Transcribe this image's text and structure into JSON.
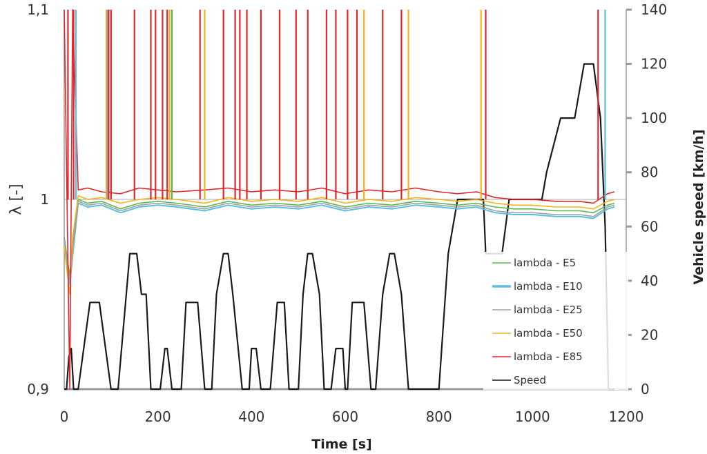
{
  "chart_data": {
    "type": "line",
    "title": "",
    "xlabel": "Time [s]",
    "ylabel_left": "λ [-]",
    "ylabel_right": "Vehicle speed [km/h]",
    "xlim": [
      0,
      1200
    ],
    "ylim_left": [
      0.9,
      1.1
    ],
    "ylim_right": [
      0,
      140
    ],
    "x_ticks": [
      "0",
      "200",
      "400",
      "600",
      "800",
      "1000",
      "1200"
    ],
    "y_left_ticks": [
      "0,9",
      "1",
      "1,1"
    ],
    "y_right_ticks": [
      "0",
      "20",
      "40",
      "60",
      "80",
      "100",
      "120",
      "140"
    ],
    "grid": "horizontal at λ = 1",
    "legend_position": "right-center",
    "legend": [
      "lambda - E5",
      "lambda - E10",
      "lambda - E25",
      "lambda - E50",
      "lambda - E85",
      "Speed"
    ],
    "series": [
      {
        "name": "Speed",
        "axis": "right",
        "color": "#1a1a1a",
        "x": [
          0,
          5,
          10,
          15,
          20,
          25,
          30,
          55,
          75,
          100,
          115,
          140,
          155,
          165,
          175,
          185,
          195,
          205,
          215,
          220,
          230,
          250,
          260,
          285,
          300,
          315,
          325,
          340,
          350,
          360,
          380,
          395,
          400,
          410,
          420,
          440,
          455,
          470,
          480,
          500,
          510,
          520,
          530,
          545,
          555,
          570,
          580,
          595,
          600,
          605,
          615,
          640,
          655,
          665,
          680,
          695,
          705,
          720,
          735,
          745,
          765,
          780,
          795,
          800,
          820,
          840,
          850,
          855,
          880,
          895,
          900,
          925,
          935,
          950,
          975,
          990,
          1020,
          1030,
          1060,
          1075,
          1090,
          1110,
          1130,
          1145,
          1155,
          1162,
          1175
        ],
        "values": [
          0,
          0,
          12,
          15,
          0,
          0,
          0,
          32,
          32,
          0,
          0,
          50,
          50,
          35,
          35,
          0,
          0,
          0,
          15,
          15,
          0,
          0,
          32,
          32,
          0,
          0,
          35,
          50,
          50,
          35,
          0,
          0,
          15,
          15,
          0,
          0,
          32,
          32,
          0,
          0,
          35,
          50,
          50,
          35,
          0,
          0,
          15,
          15,
          0,
          0,
          32,
          32,
          0,
          0,
          35,
          50,
          50,
          35,
          0,
          0,
          0,
          0,
          0,
          0,
          50,
          70,
          70,
          70,
          70,
          70,
          50,
          50,
          50,
          70,
          70,
          70,
          70,
          80,
          100,
          100,
          100,
          120,
          120,
          100,
          60,
          0,
          0
        ]
      },
      {
        "name": "lambda - E5",
        "axis": "left",
        "color": "#5ab552",
        "x": [
          0,
          12,
          18,
          30,
          50,
          80,
          120,
          160,
          200,
          240,
          300,
          350,
          400,
          450,
          500,
          550,
          600,
          650,
          700,
          750,
          800,
          840,
          880,
          920,
          960,
          1000,
          1050,
          1100,
          1130,
          1160,
          1175
        ],
        "values": [
          0.98,
          0.96,
          0.975,
          1.0,
          0.998,
          0.999,
          0.995,
          0.998,
          0.999,
          0.998,
          0.996,
          0.999,
          0.997,
          0.998,
          0.997,
          0.999,
          0.996,
          0.998,
          0.997,
          0.999,
          0.998,
          0.997,
          0.998,
          0.996,
          0.995,
          0.995,
          0.994,
          0.994,
          0.993,
          0.997,
          0.998
        ]
      },
      {
        "name": "lambda - E10",
        "axis": "left",
        "color": "#5bbde0",
        "x": [
          0,
          12,
          18,
          30,
          50,
          80,
          120,
          160,
          200,
          240,
          300,
          350,
          400,
          450,
          500,
          550,
          600,
          650,
          700,
          750,
          800,
          840,
          880,
          920,
          960,
          1000,
          1050,
          1100,
          1130,
          1160,
          1175
        ],
        "values": [
          0.978,
          0.955,
          0.97,
          0.998,
          0.996,
          0.997,
          0.993,
          0.996,
          0.997,
          0.996,
          0.994,
          0.997,
          0.995,
          0.996,
          0.995,
          0.997,
          0.994,
          0.996,
          0.995,
          0.997,
          0.996,
          0.995,
          0.996,
          0.993,
          0.992,
          0.992,
          0.991,
          0.991,
          0.99,
          0.995,
          0.996
        ]
      },
      {
        "name": "lambda - E25",
        "axis": "left",
        "color": "#a0a0a0",
        "x": [
          0,
          12,
          18,
          30,
          50,
          80,
          120,
          160,
          200,
          240,
          300,
          350,
          400,
          450,
          500,
          550,
          600,
          650,
          700,
          750,
          800,
          840,
          880,
          920,
          960,
          1000,
          1050,
          1100,
          1130,
          1160,
          1175
        ],
        "values": [
          0.979,
          0.958,
          0.972,
          0.999,
          0.997,
          0.998,
          0.994,
          0.997,
          0.998,
          0.997,
          0.995,
          0.998,
          0.996,
          0.997,
          0.996,
          0.998,
          0.995,
          0.997,
          0.996,
          0.998,
          0.997,
          0.996,
          0.997,
          0.994,
          0.993,
          0.993,
          0.992,
          0.992,
          0.991,
          0.996,
          0.997
        ]
      },
      {
        "name": "lambda - E50",
        "axis": "left",
        "color": "#f0b21c",
        "x": [
          0,
          12,
          18,
          30,
          50,
          80,
          120,
          160,
          200,
          240,
          300,
          350,
          400,
          450,
          500,
          550,
          600,
          650,
          700,
          750,
          800,
          840,
          880,
          920,
          960,
          1000,
          1050,
          1100,
          1130,
          1160,
          1175
        ],
        "values": [
          0.975,
          0.95,
          0.98,
          1.002,
          1.0,
          1.001,
          0.998,
          1.0,
          1.001,
          1.0,
          0.998,
          1.001,
          0.999,
          1.0,
          0.999,
          1.001,
          0.998,
          1.0,
          0.999,
          1.001,
          1.0,
          0.999,
          1.0,
          0.998,
          0.997,
          0.997,
          0.996,
          0.996,
          0.995,
          0.999,
          1.0
        ]
      },
      {
        "name": "lambda - E85",
        "axis": "left",
        "color": "#e0262a",
        "x": [
          0,
          12,
          18,
          30,
          50,
          80,
          120,
          160,
          200,
          240,
          300,
          350,
          400,
          450,
          500,
          550,
          600,
          650,
          700,
          750,
          800,
          840,
          880,
          920,
          960,
          1000,
          1050,
          1100,
          1130,
          1160,
          1175
        ],
        "values": [
          1.1,
          0.9,
          1.1,
          1.005,
          1.006,
          1.004,
          1.003,
          1.006,
          1.005,
          1.004,
          1.005,
          1.006,
          1.004,
          1.005,
          1.004,
          1.006,
          1.003,
          1.005,
          1.004,
          1.006,
          1.004,
          1.003,
          1.004,
          1.001,
          1.0,
          1.0,
          0.999,
          0.999,
          0.998,
          1.003,
          1.004
        ]
      }
    ],
    "spikes_to_top": [
      {
        "name": "lambda - E85",
        "color": "#e0262a",
        "x": [
          8,
          20,
          95,
          100,
          150,
          185,
          195,
          210,
          220,
          290,
          340,
          365,
          375,
          390,
          420,
          460,
          495,
          520,
          560,
          580,
          605,
          625,
          680,
          720,
          900,
          1140
        ]
      },
      {
        "name": "lambda - E50",
        "color": "#f0b21c",
        "x": [
          90,
          225,
          300,
          640,
          735,
          890
        ]
      },
      {
        "name": "lambda - E10",
        "color": "#5bbde0",
        "x": [
          25,
          1155
        ]
      },
      {
        "name": "lambda - E25",
        "color": "#a0a0a0",
        "x": [
          92
        ]
      },
      {
        "name": "lambda - E5",
        "color": "#5ab552",
        "x": [
          230
        ]
      }
    ]
  }
}
